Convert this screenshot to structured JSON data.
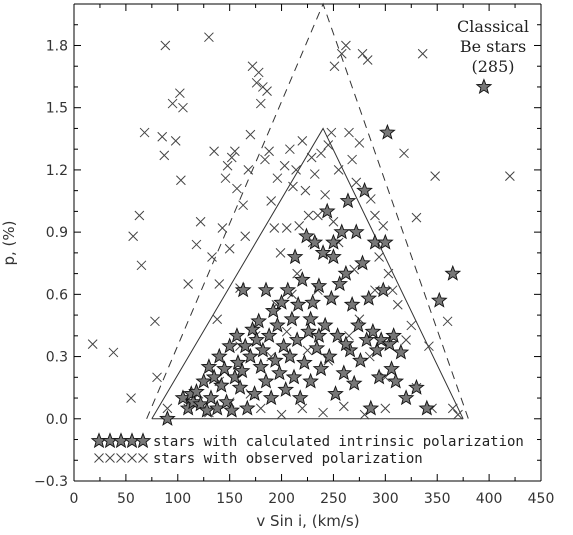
{
  "chart_data": {
    "type": "scatter",
    "title": "",
    "xlabel": "v Sin i, (km/s)",
    "ylabel": "p, (%)",
    "xlim": [
      0,
      450
    ],
    "ylim": [
      -0.3,
      2.0
    ],
    "xticks": [
      0,
      50,
      100,
      150,
      200,
      250,
      300,
      350,
      400,
      450
    ],
    "yticks": [
      -0.3,
      0.0,
      0.3,
      0.6,
      0.9,
      1.2,
      1.5,
      1.8
    ],
    "xtick_labels": [
      "0",
      "50",
      "100",
      "150",
      "200",
      "250",
      "300",
      "350",
      "400",
      "450"
    ],
    "ytick_labels": [
      "−0.3",
      "0.0",
      "0.3",
      "0.6",
      "0.9",
      "1.2",
      "1.5",
      "1.8"
    ],
    "grid": false,
    "annotation": {
      "line1": "Classical",
      "line2": "Be stars",
      "line3": "(285)"
    },
    "legend": {
      "placement": "bottom-left",
      "calculated_label": "stars with calculated intrinsic polarization",
      "observed_label": "stars with observed polarization"
    },
    "envelopes": [
      {
        "style": "dashed",
        "points": [
          [
            70,
            0.0
          ],
          [
            240,
            2.0
          ],
          [
            380,
            0.0
          ]
        ]
      },
      {
        "style": "solid",
        "points": [
          [
            75,
            0.0
          ],
          [
            240,
            1.4
          ],
          [
            375,
            0.0
          ]
        ]
      }
    ],
    "series": [
      {
        "name": "stars with observed polarization",
        "marker": "x",
        "points": [
          [
            18,
            0.36
          ],
          [
            38,
            0.32
          ],
          [
            55,
            0.1
          ],
          [
            57,
            0.88
          ],
          [
            63,
            0.98
          ],
          [
            65,
            0.74
          ],
          [
            68,
            1.38
          ],
          [
            78,
            0.47
          ],
          [
            80,
            0.2
          ],
          [
            85,
            1.36
          ],
          [
            88,
            1.8
          ],
          [
            87,
            1.27
          ],
          [
            90,
            0.05
          ],
          [
            95,
            1.52
          ],
          [
            98,
            1.34
          ],
          [
            102,
            1.57
          ],
          [
            105,
            1.5
          ],
          [
            103,
            1.15
          ],
          [
            110,
            0.65
          ],
          [
            118,
            0.84
          ],
          [
            122,
            0.95
          ],
          [
            130,
            1.84
          ],
          [
            133,
            0.78
          ],
          [
            135,
            1.29
          ],
          [
            138,
            0.48
          ],
          [
            140,
            0.65
          ],
          [
            143,
            0.92
          ],
          [
            146,
            1.16
          ],
          [
            148,
            1.22
          ],
          [
            150,
            0.82
          ],
          [
            152,
            1.26
          ],
          [
            155,
            1.29
          ],
          [
            157,
            1.11
          ],
          [
            160,
            0.63
          ],
          [
            163,
            1.03
          ],
          [
            165,
            0.88
          ],
          [
            168,
            1.2
          ],
          [
            170,
            1.37
          ],
          [
            172,
            1.7
          ],
          [
            176,
            1.62
          ],
          [
            178,
            1.67
          ],
          [
            180,
            1.52
          ],
          [
            182,
            1.6
          ],
          [
            184,
            1.25
          ],
          [
            186,
            1.58
          ],
          [
            188,
            1.29
          ],
          [
            190,
            1.05
          ],
          [
            193,
            0.92
          ],
          [
            196,
            1.16
          ],
          [
            199,
            0.8
          ],
          [
            203,
            1.22
          ],
          [
            205,
            0.92
          ],
          [
            208,
            1.3
          ],
          [
            211,
            1.12
          ],
          [
            214,
            1.2
          ],
          [
            217,
            0.93
          ],
          [
            220,
            1.34
          ],
          [
            223,
            1.1
          ],
          [
            226,
            0.98
          ],
          [
            229,
            1.26
          ],
          [
            232,
            1.18
          ],
          [
            235,
            0.98
          ],
          [
            238,
            1.28
          ],
          [
            242,
            1.08
          ],
          [
            245,
            1.32
          ],
          [
            248,
            1.38
          ],
          [
            251,
            1.7
          ],
          [
            255,
            1.2
          ],
          [
            258,
            1.76
          ],
          [
            262,
            1.8
          ],
          [
            265,
            1.38
          ],
          [
            268,
            1.25
          ],
          [
            272,
            1.14
          ],
          [
            275,
            1.33
          ],
          [
            278,
            1.76
          ],
          [
            283,
            1.73
          ],
          [
            286,
            1.06
          ],
          [
            290,
            0.98
          ],
          [
            294,
            0.78
          ],
          [
            298,
            0.93
          ],
          [
            303,
            0.7
          ],
          [
            307,
            0.62
          ],
          [
            312,
            0.55
          ],
          [
            318,
            1.28
          ],
          [
            325,
            0.45
          ],
          [
            330,
            0.97
          ],
          [
            336,
            1.76
          ],
          [
            342,
            0.35
          ],
          [
            348,
            1.17
          ],
          [
            360,
            0.47
          ],
          [
            365,
            0.05
          ],
          [
            370,
            0.02
          ],
          [
            420,
            1.17
          ],
          [
            180,
            0.05
          ],
          [
            200,
            0.02
          ],
          [
            220,
            0.05
          ],
          [
            240,
            0.03
          ],
          [
            260,
            0.06
          ],
          [
            280,
            0.02
          ],
          [
            300,
            0.05
          ],
          [
            175,
            0.4
          ],
          [
            195,
            0.55
          ],
          [
            215,
            0.7
          ],
          [
            235,
            0.62
          ],
          [
            255,
            0.85
          ],
          [
            275,
            0.48
          ],
          [
            290,
            0.62
          ],
          [
            160,
            0.35
          ],
          [
            140,
            0.18
          ],
          [
            120,
            0.12
          ],
          [
            205,
            0.42
          ],
          [
            225,
            0.33
          ],
          [
            245,
            0.28
          ],
          [
            265,
            0.4
          ],
          [
            285,
            0.3
          ],
          [
            230,
            0.85
          ],
          [
            250,
            0.95
          ],
          [
            210,
            0.6
          ],
          [
            190,
            0.3
          ],
          [
            270,
            0.72
          ],
          [
            300,
            0.2
          ],
          [
            320,
            0.38
          ],
          [
            330,
            0.15
          ],
          [
            345,
            0.05
          ],
          [
            110,
            0.05
          ],
          [
            130,
            0.03
          ],
          [
            150,
            0.08
          ],
          [
            170,
            0.12
          ]
        ]
      },
      {
        "name": "stars with calculated intrinsic polarization",
        "marker": "star",
        "points": [
          [
            90,
            0.0
          ],
          [
            105,
            0.1
          ],
          [
            110,
            0.05
          ],
          [
            113,
            0.12
          ],
          [
            115,
            0.08
          ],
          [
            118,
            0.13
          ],
          [
            122,
            0.07
          ],
          [
            125,
            0.18
          ],
          [
            128,
            0.04
          ],
          [
            130,
            0.25
          ],
          [
            132,
            0.1
          ],
          [
            135,
            0.2
          ],
          [
            138,
            0.05
          ],
          [
            140,
            0.3
          ],
          [
            142,
            0.16
          ],
          [
            145,
            0.24
          ],
          [
            147,
            0.08
          ],
          [
            150,
            0.35
          ],
          [
            152,
            0.04
          ],
          [
            155,
            0.2
          ],
          [
            157,
            0.4
          ],
          [
            158,
            0.27
          ],
          [
            160,
            0.15
          ],
          [
            162,
            0.23
          ],
          [
            165,
            0.35
          ],
          [
            167,
            0.05
          ],
          [
            170,
            0.3
          ],
          [
            172,
            0.43
          ],
          [
            174,
            0.12
          ],
          [
            176,
            0.38
          ],
          [
            178,
            0.47
          ],
          [
            180,
            0.25
          ],
          [
            182,
            0.33
          ],
          [
            185,
            0.18
          ],
          [
            188,
            0.4
          ],
          [
            190,
            0.1
          ],
          [
            192,
            0.52
          ],
          [
            194,
            0.28
          ],
          [
            196,
            0.45
          ],
          [
            198,
            0.22
          ],
          [
            200,
            0.56
          ],
          [
            202,
            0.35
          ],
          [
            204,
            0.14
          ],
          [
            206,
            0.62
          ],
          [
            208,
            0.3
          ],
          [
            210,
            0.48
          ],
          [
            212,
            0.2
          ],
          [
            213,
            0.78
          ],
          [
            215,
            0.38
          ],
          [
            216,
            0.55
          ],
          [
            218,
            0.1
          ],
          [
            220,
            0.67
          ],
          [
            222,
            0.27
          ],
          [
            224,
            0.88
          ],
          [
            226,
            0.42
          ],
          [
            228,
            0.18
          ],
          [
            230,
            0.56
          ],
          [
            232,
            0.85
          ],
          [
            234,
            0.34
          ],
          [
            236,
            0.64
          ],
          [
            238,
            0.24
          ],
          [
            240,
            0.8
          ],
          [
            242,
            0.45
          ],
          [
            244,
            1.0
          ],
          [
            246,
            0.3
          ],
          [
            248,
            0.58
          ],
          [
            250,
            0.78
          ],
          [
            250,
            0.85
          ],
          [
            252,
            0.12
          ],
          [
            254,
            0.4
          ],
          [
            256,
            0.65
          ],
          [
            258,
            0.9
          ],
          [
            260,
            0.22
          ],
          [
            262,
            0.7
          ],
          [
            264,
            1.05
          ],
          [
            266,
            0.33
          ],
          [
            268,
            0.55
          ],
          [
            270,
            0.17
          ],
          [
            272,
            0.9
          ],
          [
            274,
            0.45
          ],
          [
            276,
            0.28
          ],
          [
            278,
            0.75
          ],
          [
            280,
            1.1
          ],
          [
            282,
            0.38
          ],
          [
            284,
            0.58
          ],
          [
            286,
            0.05
          ],
          [
            288,
            0.42
          ],
          [
            290,
            0.85
          ],
          [
            292,
            0.33
          ],
          [
            294,
            0.2
          ],
          [
            296,
            0.38
          ],
          [
            298,
            0.62
          ],
          [
            300,
            0.85
          ],
          [
            302,
            1.38
          ],
          [
            304,
            0.36
          ],
          [
            306,
            0.24
          ],
          [
            308,
            0.4
          ],
          [
            310,
            0.18
          ],
          [
            315,
            0.32
          ],
          [
            320,
            0.1
          ],
          [
            330,
            0.15
          ],
          [
            340,
            0.05
          ],
          [
            352,
            0.57
          ],
          [
            365,
            0.7
          ],
          [
            395,
            1.6
          ],
          [
            163,
            0.62
          ],
          [
            185,
            0.62
          ],
          [
            228,
            0.48
          ],
          [
            236,
            0.4
          ],
          [
            262,
            0.36
          ]
        ]
      }
    ]
  }
}
